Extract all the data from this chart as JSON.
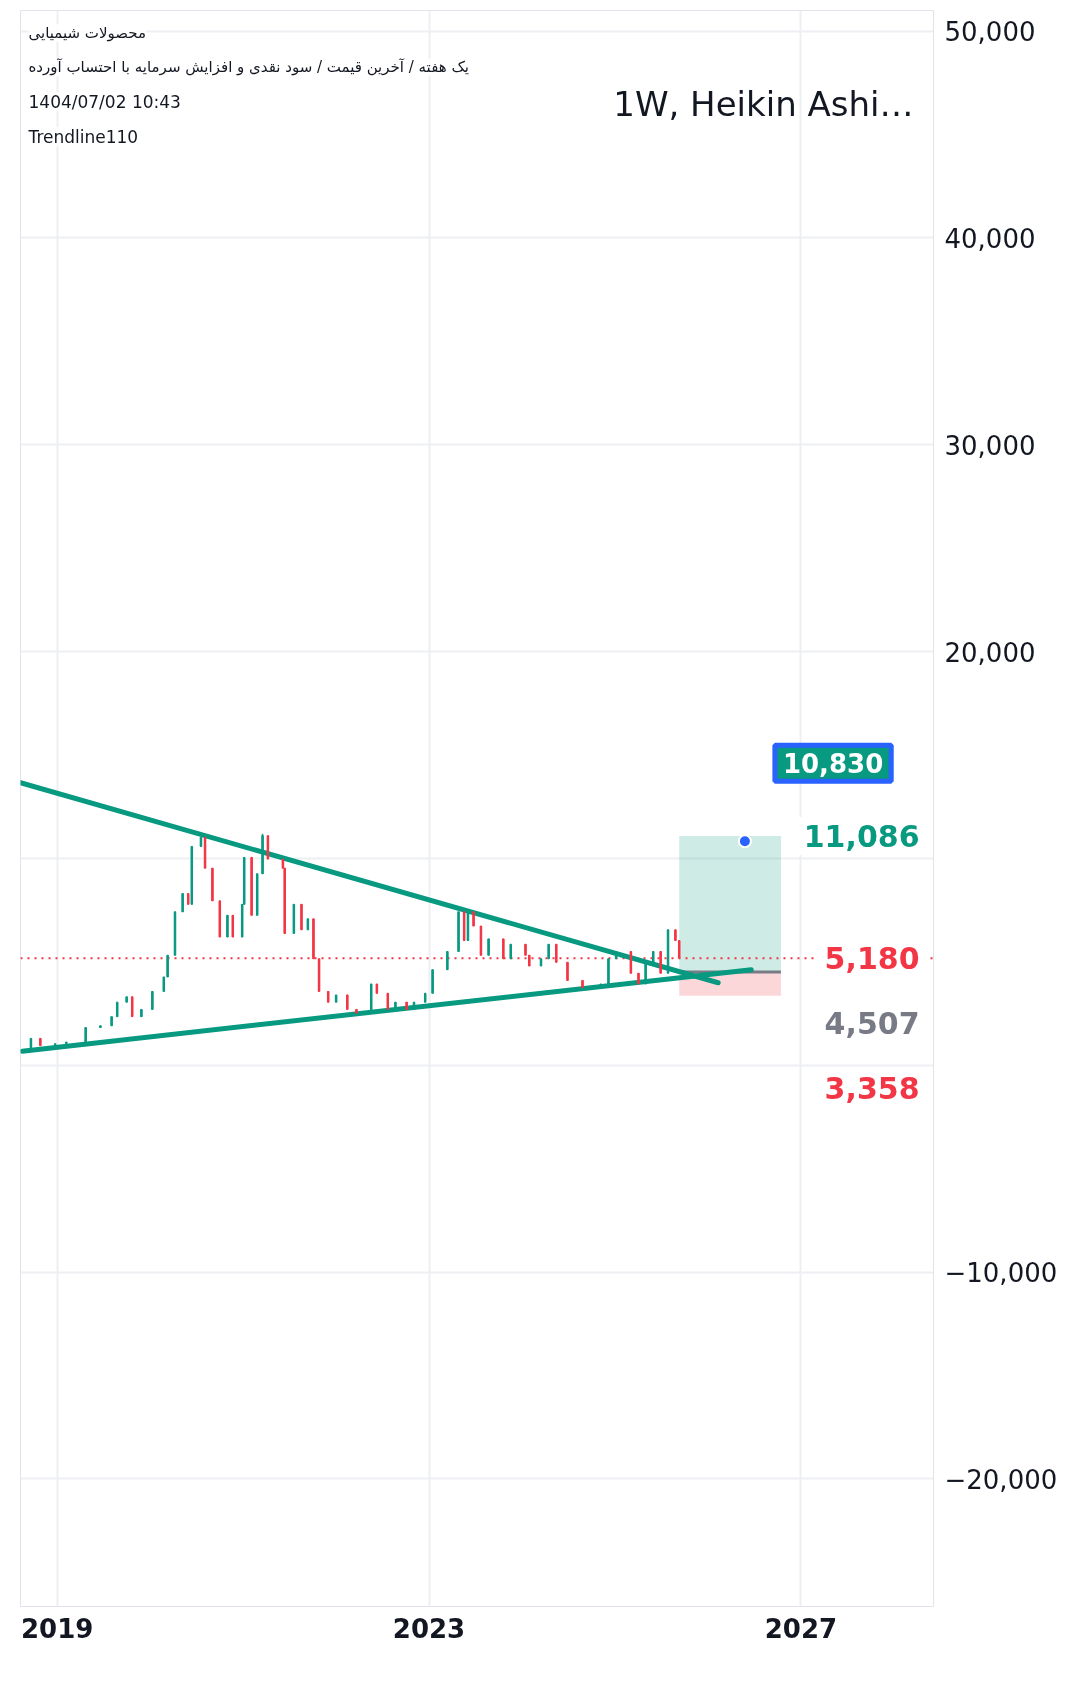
{
  "chart_data": {
    "type": "candlestick",
    "title": "محصولات شیمیایی",
    "subtitle": "یک هفته / آخرین قیمت / سود نقدی و افزایش سرمایه با احتساب آورده",
    "annotations": [
      "1W, Heikin Ashi…",
      "1404/07/02 10:43",
      "Trendline110",
      {
        "text": "10,830",
        "x": "2026-05-26",
        "y": 10830
      }
    ],
    "x": [
      "2018-08-29",
      "2018-09-20",
      "2018-10-27",
      "2018-12-24",
      "2019-02-06",
      "2019-04-23",
      "2019-06-20",
      "2019-08-03",
      "2019-08-25",
      "2019-10-01",
      "2019-10-23",
      "2019-11-28",
      "2020-01-10",
      "2020-02-24",
      "2020-03-10",
      "2020-04-08",
      "2020-05-08",
      "2020-05-30",
      "2020-06-13",
      "2020-07-19",
      "2020-08-04",
      "2020-09-02",
      "2020-10-01",
      "2020-10-31",
      "2020-11-21",
      "2020-12-28",
      "2021-01-05",
      "2021-02-03",
      "2021-02-25",
      "2021-03-18",
      "2021-04-08",
      "2021-06-06",
      "2021-06-13",
      "2021-07-19",
      "2021-08-18",
      "2021-09-12",
      "2021-10-04",
      "2021-10-26",
      "2021-12-01",
      "2022-01-01",
      "2022-02-14",
      "2022-03-22",
      "2022-05-19",
      "2022-06-10",
      "2022-07-23",
      "2022-08-22",
      "2022-10-05",
      "2022-11-03",
      "2022-12-17",
      "2023-01-15",
      "2023-03-14",
      "2023-04-27",
      "2023-05-19",
      "2023-06-03",
      "2023-06-25",
      "2023-07-24",
      "2023-08-23",
      "2023-10-20",
      "2023-11-18",
      "2024-01-15",
      "2024-01-30",
      "2024-03-16",
      "2024-04-15",
      "2024-05-15",
      "2024-06-28",
      "2024-08-26",
      "2024-11-06",
      "2024-12-06",
      "2025-01-05",
      "2025-03-04",
      "2025-04-03",
      "2025-05-01",
      "2025-05-31",
      "2025-06-29",
      "2025-07-28",
      "2025-08-26",
      "2025-09-10"
    ],
    "ohlc": [
      [
        700,
        770,
        700,
        770
      ],
      [
        770,
        1300,
        770,
        1300
      ],
      [
        1300,
        1300,
        950,
        950
      ],
      [
        950,
        1040,
        950,
        1040
      ],
      [
        1040,
        1120,
        1040,
        1120
      ],
      [
        1120,
        1820,
        1120,
        1820
      ],
      [
        1820,
        1910,
        1820,
        1910
      ],
      [
        1910,
        2350,
        1910,
        2350
      ],
      [
        2350,
        3050,
        2350,
        3050
      ],
      [
        3050,
        3310,
        3050,
        3310
      ],
      [
        3310,
        3310,
        2350,
        2350
      ],
      [
        2350,
        2700,
        2350,
        2700
      ],
      [
        2700,
        3570,
        2700,
        3570
      ],
      [
        3570,
        4270,
        3570,
        4270
      ],
      [
        4270,
        5320,
        4270,
        5320
      ],
      [
        5320,
        7420,
        5320,
        7420
      ],
      [
        7420,
        8300,
        7420,
        8300
      ],
      [
        8300,
        8300,
        7780,
        7780
      ],
      [
        7780,
        10580,
        7780,
        10580
      ],
      [
        10580,
        11020,
        10580,
        11020
      ],
      [
        11020,
        11020,
        9530,
        9530
      ],
      [
        9530,
        9530,
        7950,
        7950
      ],
      [
        7950,
        7950,
        6200,
        6200
      ],
      [
        6200,
        7250,
        6200,
        7250
      ],
      [
        7250,
        7250,
        6200,
        6200
      ],
      [
        6200,
        7780,
        6200,
        7780
      ],
      [
        7780,
        10050,
        7780,
        10050
      ],
      [
        10050,
        10050,
        7250,
        7250
      ],
      [
        7250,
        9260,
        7250,
        9260
      ],
      [
        9260,
        11190,
        9260,
        11100
      ],
      [
        11100,
        11100,
        9970,
        9970
      ],
      [
        9970,
        9970,
        9530,
        9530
      ],
      [
        9530,
        9530,
        6370,
        6370
      ],
      [
        6370,
        7780,
        6370,
        7780
      ],
      [
        7780,
        7780,
        6550,
        6550
      ],
      [
        6550,
        7080,
        6550,
        7080
      ],
      [
        7080,
        7080,
        5150,
        5150
      ],
      [
        5150,
        5150,
        3570,
        3570
      ],
      [
        3570,
        3570,
        3050,
        3050
      ],
      [
        3050,
        3400,
        3050,
        3400
      ],
      [
        3400,
        3400,
        2700,
        2700
      ],
      [
        2700,
        2700,
        2520,
        2520
      ],
      [
        2520,
        3930,
        2520,
        3930
      ],
      [
        3930,
        3930,
        3480,
        3480
      ],
      [
        3480,
        3480,
        2700,
        2700
      ],
      [
        2700,
        3050,
        2700,
        3050
      ],
      [
        3050,
        3050,
        2700,
        2700
      ],
      [
        2700,
        3050,
        2700,
        3050
      ],
      [
        3050,
        3480,
        3050,
        3480
      ],
      [
        3480,
        4620,
        3480,
        4620
      ],
      [
        4620,
        5500,
        4620,
        5500
      ],
      [
        5500,
        7420,
        5500,
        7420
      ],
      [
        7420,
        7420,
        6030,
        6030
      ],
      [
        6030,
        7420,
        6030,
        7420
      ],
      [
        7420,
        7420,
        6730,
        6730
      ],
      [
        6730,
        6730,
        5320,
        5320
      ],
      [
        5320,
        6110,
        5320,
        6110
      ],
      [
        6110,
        6110,
        5150,
        5150
      ],
      [
        5150,
        5850,
        5150,
        5850
      ],
      [
        5850,
        5850,
        5320,
        5320
      ],
      [
        5320,
        5320,
        4800,
        4800
      ],
      [
        4800,
        5150,
        4800,
        5150
      ],
      [
        5150,
        5850,
        5150,
        5850
      ],
      [
        5850,
        5850,
        4980,
        4980
      ],
      [
        4980,
        4980,
        4100,
        4100
      ],
      [
        4100,
        4100,
        3750,
        3750
      ],
      [
        3750,
        3930,
        3750,
        3930
      ],
      [
        3930,
        5150,
        3930,
        5150
      ],
      [
        5150,
        5500,
        5150,
        5500
      ],
      [
        5500,
        5500,
        4450,
        4450
      ],
      [
        4450,
        4450,
        3930,
        3930
      ],
      [
        3930,
        4980,
        3930,
        4980
      ],
      [
        4980,
        5500,
        4980,
        5500
      ],
      [
        5500,
        5500,
        4450,
        4450
      ],
      [
        4450,
        6550,
        4450,
        6550
      ],
      [
        6550,
        6550,
        6030,
        6030
      ],
      [
        6030,
        6030,
        5180,
        5180
      ]
    ],
    "series": [
      {
        "type": "line",
        "color": "#089981",
        "x": [
          "2018-08-10",
          "2026-02-10"
        ],
        "values": [
          13660,
          3990
        ]
      },
      {
        "type": "line",
        "color": "#089981",
        "x": [
          "2018-08-17",
          "2026-06-20"
        ],
        "values": [
          680,
          4620
        ]
      }
    ],
    "ref_lines": [
      {
        "axis": "y",
        "value": 5180,
        "label": "5,180",
        "color": "#f23645",
        "line_style": "dotted"
      },
      {
        "axis": "y",
        "value": 4507,
        "label": "4,507",
        "color": "#787b86",
        "line_style": "solid"
      }
    ],
    "bands": [
      {
        "axis": "y",
        "from": 4507,
        "to": 11086,
        "label": "11,086",
        "color": "#089981"
      },
      {
        "axis": "y",
        "from": 3358,
        "to": 4507,
        "label": "3,358",
        "color": "#f23645"
      }
    ],
    "xlim": [
      "2018-08-10",
      "2028-06-05"
    ],
    "xticks": [
      {
        "value": "2019",
        "label": "2019"
      },
      {
        "value": "2023",
        "label": "2023"
      },
      {
        "value": "2027",
        "label": "2027"
      }
    ],
    "ylim": [
      -26170,
      51000
    ],
    "yticks": [
      {
        "value": -20000,
        "label": "−20,000"
      },
      {
        "value": -10000,
        "label": "−10,000"
      },
      {
        "value": 0,
        "label": null
      },
      {
        "value": 10000,
        "label": null
      },
      {
        "value": 20000,
        "label": "20,000"
      },
      {
        "value": 30000,
        "label": "30,000"
      },
      {
        "value": 40000,
        "label": "40,000"
      },
      {
        "value": 50000,
        "label": "50,000"
      }
    ],
    "grid": true
  }
}
